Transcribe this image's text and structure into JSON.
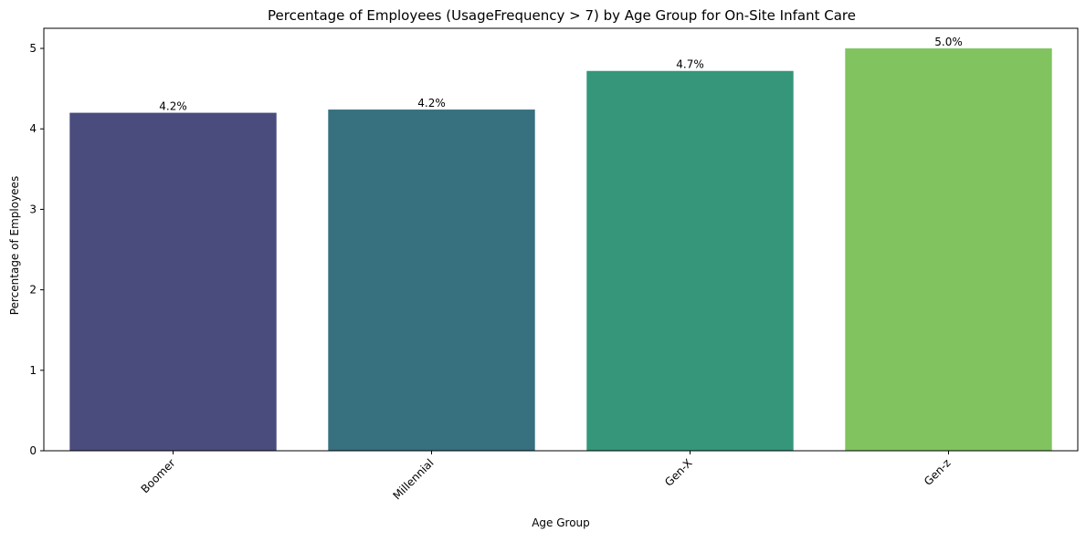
{
  "chart_data": {
    "type": "bar",
    "title": "Percentage of Employees (UsageFrequency > 7) by Age Group for On-Site Infant Care",
    "xlabel": "Age Group",
    "ylabel": "Percentage of Employees",
    "categories": [
      "Boomer",
      "Millennial",
      "Gen-X",
      "Gen-z"
    ],
    "values": [
      4.2,
      4.24,
      4.72,
      5.0
    ],
    "data_labels": [
      "4.2%",
      "4.2%",
      "4.7%",
      "5.0%"
    ],
    "colors": [
      "#4a4c7e",
      "#37707f",
      "#35967a",
      "#80c35f"
    ],
    "ylim": [
      0,
      5.25
    ],
    "yticks": [
      0,
      1,
      2,
      3,
      4,
      5
    ],
    "ytick_labels": [
      "0",
      "1",
      "2",
      "3",
      "4",
      "5"
    ],
    "grid": false,
    "legend": "none"
  }
}
